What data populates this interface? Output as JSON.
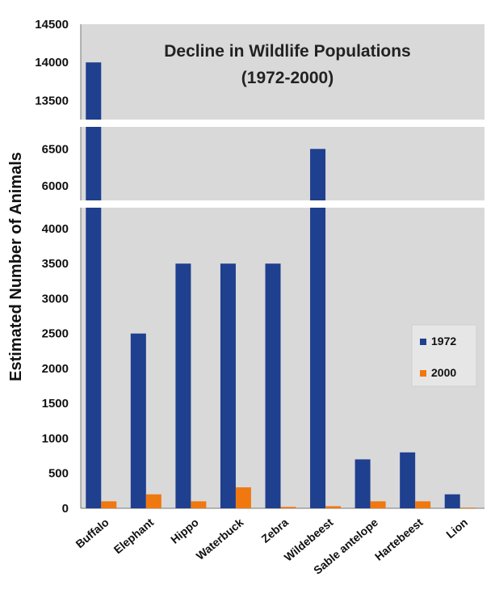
{
  "chart_data": {
    "type": "bar",
    "title_line1": "Decline in Wildlife Populations",
    "title_line2": "(1972-2000)",
    "ylabel": "Estimated Number of Animals",
    "xlabel": "",
    "categories": [
      "Buffalo",
      "Elephant",
      "Hippo",
      "Waterbuck",
      "Zebra",
      "Wildebeest",
      "Sable antelope",
      "Hartebeest",
      "Lion"
    ],
    "series": [
      {
        "name": "1972",
        "color": "#1f3f8f",
        "values": [
          14000,
          2500,
          3500,
          3500,
          3500,
          6500,
          700,
          800,
          200
        ]
      },
      {
        "name": "2000",
        "color": "#f07810",
        "values": [
          100,
          200,
          100,
          300,
          20,
          30,
          100,
          100,
          10
        ]
      }
    ],
    "broken_axis": true,
    "y_segments": [
      {
        "ylim": [
          13250,
          14500
        ],
        "ticks": [
          13500,
          14000,
          14500
        ]
      },
      {
        "ylim": [
          5800,
          6800
        ],
        "ticks": [
          6000,
          6500
        ]
      },
      {
        "ylim": [
          0,
          4300
        ],
        "ticks": [
          0,
          500,
          1000,
          1500,
          2000,
          2500,
          3000,
          3500,
          4000
        ]
      }
    ],
    "legend_position": "right",
    "grid": false
  }
}
